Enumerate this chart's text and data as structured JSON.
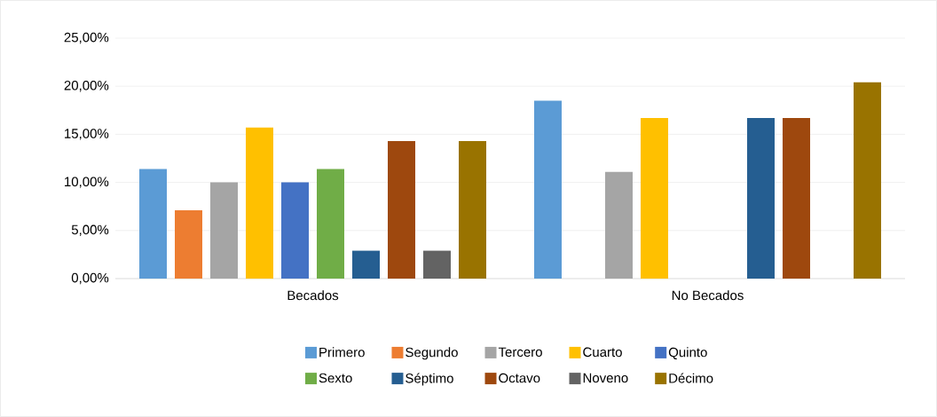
{
  "chart_data": {
    "type": "bar",
    "categories": [
      "Becados",
      "No Becados"
    ],
    "series": [
      {
        "name": "Primero",
        "color": "#5b9bd5",
        "values": [
          11.4,
          18.5
        ]
      },
      {
        "name": "Segundo",
        "color": "#ed7d31",
        "values": [
          7.1,
          0
        ]
      },
      {
        "name": "Tercero",
        "color": "#a5a5a5",
        "values": [
          10.0,
          11.1
        ]
      },
      {
        "name": "Cuarto",
        "color": "#ffc000",
        "values": [
          15.7,
          16.7
        ]
      },
      {
        "name": "Quinto",
        "color": "#4472c4",
        "values": [
          10.0,
          0
        ]
      },
      {
        "name": "Sexto",
        "color": "#70ad47",
        "values": [
          11.4,
          0
        ]
      },
      {
        "name": "Séptimo",
        "color": "#255e91",
        "values": [
          2.9,
          16.7
        ]
      },
      {
        "name": "Octavo",
        "color": "#9e480e",
        "values": [
          14.3,
          16.7
        ]
      },
      {
        "name": "Noveno",
        "color": "#636363",
        "values": [
          2.9,
          0
        ]
      },
      {
        "name": "Décimo",
        "color": "#997300",
        "values": [
          14.3,
          20.4
        ]
      }
    ],
    "ylim": [
      0,
      25
    ],
    "yticks": [
      {
        "value": 0,
        "label": "0,00%"
      },
      {
        "value": 5,
        "label": "5,00%"
      },
      {
        "value": 10,
        "label": "10,00%"
      },
      {
        "value": 15,
        "label": "15,00%"
      },
      {
        "value": 20,
        "label": "20,00%"
      },
      {
        "value": 25,
        "label": "25,00%"
      }
    ],
    "grid": "y",
    "legend": "bottom"
  }
}
